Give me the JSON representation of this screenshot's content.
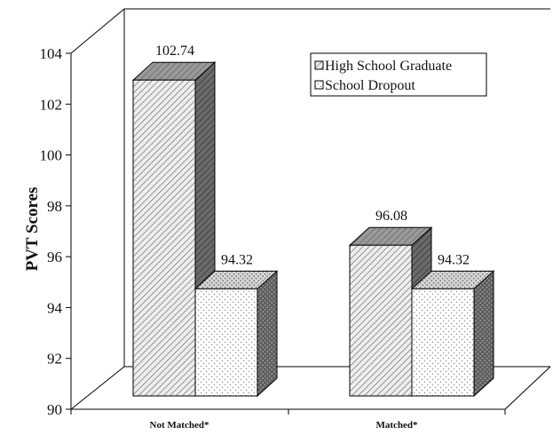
{
  "chart_data": {
    "type": "bar",
    "style": "3d-clustered",
    "title": "",
    "ylabel": "PVT Scores",
    "xlabel": "",
    "ylim": [
      90,
      104
    ],
    "yticks": [
      90,
      92,
      94,
      96,
      98,
      100,
      102,
      104
    ],
    "categories": [
      "Not Matched*",
      "Matched*"
    ],
    "series": [
      {
        "name": "High School Graduate",
        "values": [
          102.74,
          96.08
        ]
      },
      {
        "name": "School Dropout",
        "values": [
          94.32,
          94.32
        ]
      }
    ],
    "data_labels": [
      [
        "102.74",
        "96.08"
      ],
      [
        "94.32",
        "94.32"
      ]
    ],
    "legend": {
      "position": "top-right",
      "entries": [
        "High School Graduate",
        "School Dropout"
      ]
    },
    "grid": false,
    "colors": {
      "series_0_pattern": "diagonal-hatch-gray",
      "series_1_pattern": "dotted-white",
      "side": "#6f6f6f",
      "top": "#b5b5b5"
    }
  }
}
